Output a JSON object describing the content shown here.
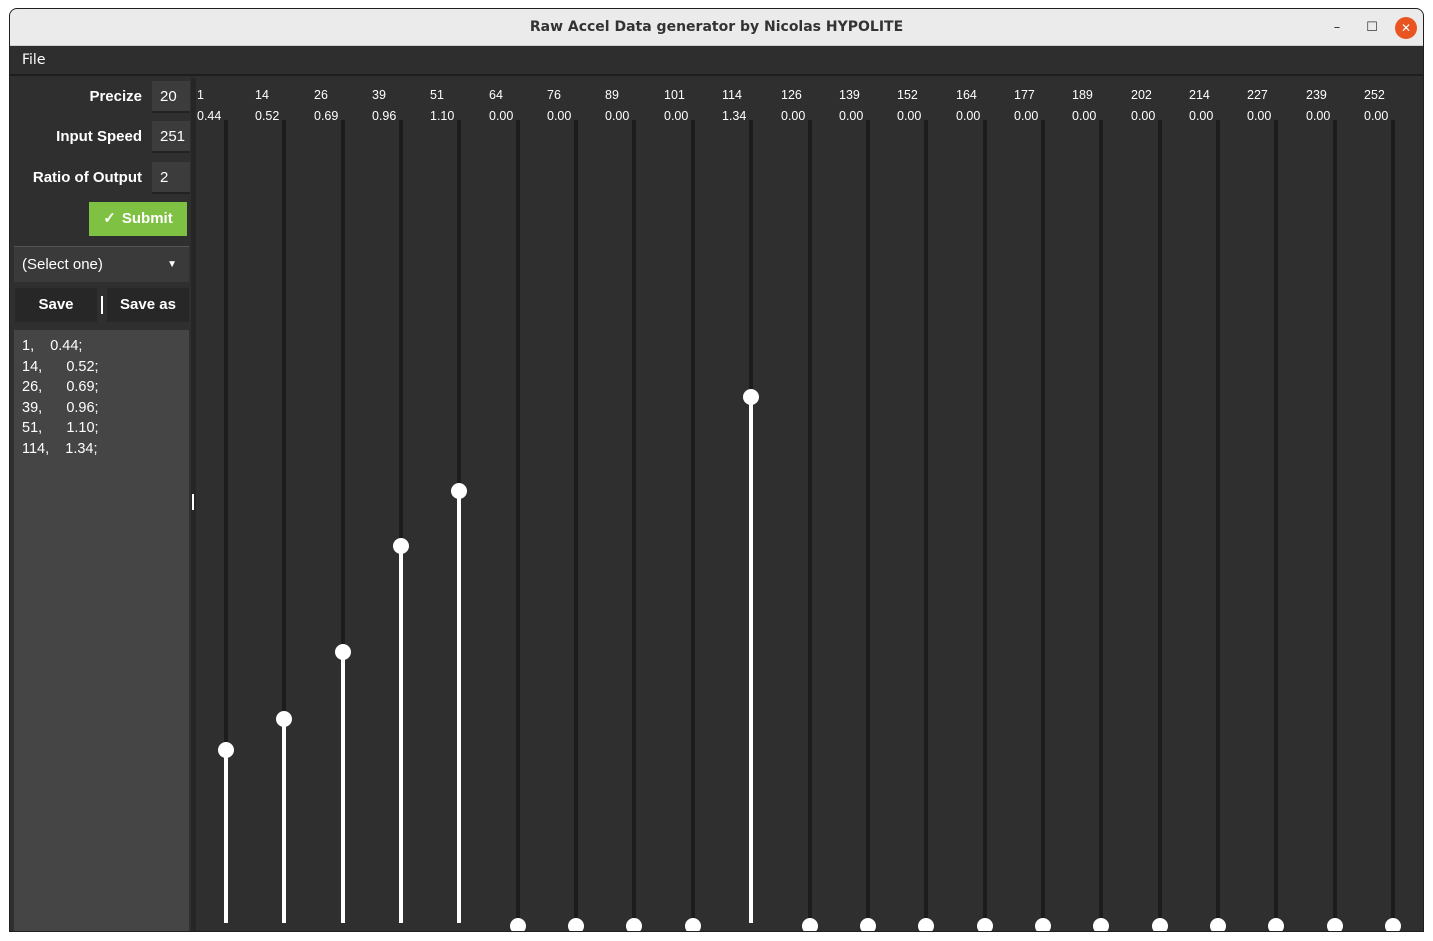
{
  "window": {
    "title": "Raw Accel Data generator by Nicolas HYPOLITE",
    "min_glyph": "–",
    "max_glyph": "☐",
    "close_glyph": "✕"
  },
  "menu": {
    "file_label": "File"
  },
  "form": {
    "precize_label": "Precize",
    "precize_value": "20",
    "input_speed_label": "Input Speed",
    "input_speed_value": "251",
    "ratio_label": "Ratio of Output",
    "ratio_value": "2",
    "submit_label": "Submit",
    "submit_icon": "check-icon"
  },
  "select": {
    "value": "(Select one)",
    "icon": "caret-down-icon"
  },
  "buttons": {
    "save_label": "Save",
    "save_as_label": "Save as"
  },
  "output_lines": [
    "1,    0.44;",
    "14,      0.52;",
    "26,      0.69;",
    "39,      0.96;",
    "51,      1.10;",
    "114,    1.34;"
  ],
  "colors": {
    "accent": "#7fc142",
    "panel": "#2f2f2f",
    "track": "#1c1c1c",
    "fill": "#ffffff",
    "close": "#e95420"
  },
  "slider_max": 2,
  "sliders": [
    {
      "x": "1",
      "y": "0.44",
      "value": 0.44
    },
    {
      "x": "14",
      "y": "0.52",
      "value": 0.52
    },
    {
      "x": "26",
      "y": "0.69",
      "value": 0.69
    },
    {
      "x": "39",
      "y": "0.96",
      "value": 0.96
    },
    {
      "x": "51",
      "y": "1.10",
      "value": 1.1
    },
    {
      "x": "64",
      "y": "0.00",
      "value": 0
    },
    {
      "x": "76",
      "y": "0.00",
      "value": 0
    },
    {
      "x": "89",
      "y": "0.00",
      "value": 0
    },
    {
      "x": "101",
      "y": "0.00",
      "value": 0
    },
    {
      "x": "114",
      "y": "1.34",
      "value": 1.34
    },
    {
      "x": "126",
      "y": "0.00",
      "value": 0
    },
    {
      "x": "139",
      "y": "0.00",
      "value": 0
    },
    {
      "x": "152",
      "y": "0.00",
      "value": 0
    },
    {
      "x": "164",
      "y": "0.00",
      "value": 0
    },
    {
      "x": "177",
      "y": "0.00",
      "value": 0
    },
    {
      "x": "189",
      "y": "0.00",
      "value": 0
    },
    {
      "x": "202",
      "y": "0.00",
      "value": 0
    },
    {
      "x": "214",
      "y": "0.00",
      "value": 0
    },
    {
      "x": "227",
      "y": "0.00",
      "value": 0
    },
    {
      "x": "239",
      "y": "0.00",
      "value": 0
    },
    {
      "x": "252",
      "y": "0.00",
      "value": 0
    }
  ]
}
